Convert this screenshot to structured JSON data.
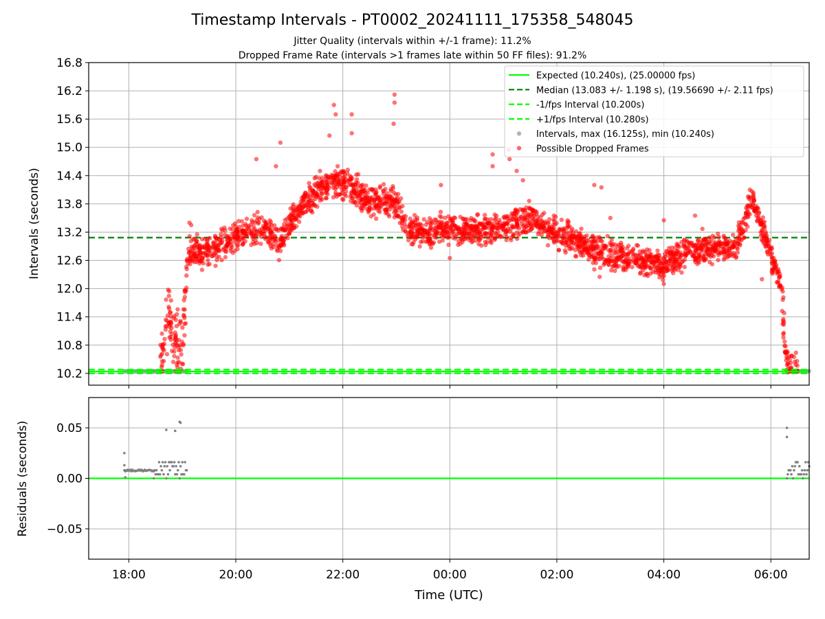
{
  "title": "Timestamp Intervals - PT0002_20241111_175358_548045",
  "subtitle_1": "Jitter Quality (intervals within +/-1 frame): 11.2%",
  "subtitle_2": "Dropped Frame Rate (intervals >1 frames late within 50 FF files): 91.2%",
  "colors": {
    "expected": "#00ff00",
    "median": "#008000",
    "fps_band": "#00ff00",
    "intervals": "#808080",
    "dropped": "#ff0000",
    "grid": "#b0b0b0"
  },
  "chart_data": [
    {
      "type": "scatter",
      "title": "Timestamp Intervals - PT0002_20241111_175358_548045",
      "xlabel": "",
      "ylabel": "Intervals (seconds)",
      "x_unit": "hours since 00:00 UTC (Nov 11 evening negative)",
      "xlim": [
        "17:15",
        "06:43"
      ],
      "ylim": [
        9.95,
        16.8
      ],
      "yticks": [
        "10.2",
        "10.8",
        "11.4",
        "12.0",
        "12.6",
        "13.2",
        "13.8",
        "14.4",
        "15.0",
        "15.6",
        "16.2",
        "16.8"
      ],
      "grid": true,
      "legend_position": "top-right",
      "legend": [
        {
          "label": "Expected (10.240s), (25.00000 fps)",
          "style": "solid-line",
          "color": "#00ff00"
        },
        {
          "label": "Median (13.083 +/- 1.198 s), (19.56690 +/- 2.11 fps)",
          "style": "dashed-line",
          "color": "#008000"
        },
        {
          "label": "-1/fps Interval (10.200s)",
          "style": "dashed-line",
          "color": "#00ff00"
        },
        {
          "label": "+1/fps Interval (10.280s)",
          "style": "dashed-line",
          "color": "#00ff00"
        },
        {
          "label": "Intervals, max (16.125s), min (10.240s)",
          "style": "marker",
          "color": "#808080"
        },
        {
          "label": "Possible Dropped Frames",
          "style": "marker",
          "color": "#ff0000"
        }
      ],
      "reference_lines": {
        "expected": 10.24,
        "median": 13.083,
        "minus_one_fps": 10.2,
        "plus_one_fps": 10.28
      },
      "series": [
        {
          "name": "Possible Dropped Frames",
          "trend": [
            {
              "time": "18:35",
              "value": 10.25
            },
            {
              "time": "18:40",
              "value": 11.0
            },
            {
              "time": "18:45",
              "value": 11.6
            },
            {
              "time": "18:50",
              "value": 10.9
            },
            {
              "time": "19:00",
              "value": 10.6
            },
            {
              "time": "19:06",
              "value": 12.7
            },
            {
              "time": "19:30",
              "value": 12.8
            },
            {
              "time": "20:00",
              "value": 13.1
            },
            {
              "time": "20:30",
              "value": 13.3
            },
            {
              "time": "20:48",
              "value": 13.0
            },
            {
              "time": "21:15",
              "value": 13.8
            },
            {
              "time": "21:45",
              "value": 14.3
            },
            {
              "time": "22:00",
              "value": 14.2
            },
            {
              "time": "22:30",
              "value": 13.9
            },
            {
              "time": "23:00",
              "value": 13.8
            },
            {
              "time": "23:10",
              "value": 13.3
            },
            {
              "time": "23:30",
              "value": 13.2
            },
            {
              "time": "00:00",
              "value": 13.3
            },
            {
              "time": "00:30",
              "value": 13.2
            },
            {
              "time": "01:00",
              "value": 13.3
            },
            {
              "time": "01:30",
              "value": 13.5
            },
            {
              "time": "02:00",
              "value": 13.2
            },
            {
              "time": "02:30",
              "value": 12.9
            },
            {
              "time": "03:00",
              "value": 12.7
            },
            {
              "time": "03:30",
              "value": 12.6
            },
            {
              "time": "04:00",
              "value": 12.55
            },
            {
              "time": "04:30",
              "value": 12.8
            },
            {
              "time": "05:00",
              "value": 12.9
            },
            {
              "time": "05:20",
              "value": 12.9
            },
            {
              "time": "05:40",
              "value": 13.9
            },
            {
              "time": "05:50",
              "value": 13.3
            },
            {
              "time": "06:00",
              "value": 12.7
            },
            {
              "time": "06:12",
              "value": 12.0
            },
            {
              "time": "06:16",
              "value": 10.8
            },
            {
              "time": "06:20",
              "value": 10.25
            },
            {
              "time": "06:30",
              "value": 10.25
            }
          ],
          "spread": 0.25,
          "outliers": [
            {
              "time": "21:50",
              "value": 15.9
            },
            {
              "time": "21:52",
              "value": 15.7
            },
            {
              "time": "22:10",
              "value": 15.7
            },
            {
              "time": "22:10",
              "value": 15.3
            },
            {
              "time": "22:58",
              "value": 16.12
            },
            {
              "time": "22:58",
              "value": 15.95
            },
            {
              "time": "22:57",
              "value": 15.5
            },
            {
              "time": "20:50",
              "value": 15.1
            },
            {
              "time": "20:45",
              "value": 14.6
            },
            {
              "time": "20:23",
              "value": 14.75
            },
            {
              "time": "21:45",
              "value": 15.25
            },
            {
              "time": "23:50",
              "value": 14.2
            },
            {
              "time": "00:48",
              "value": 14.6
            },
            {
              "time": "00:48",
              "value": 14.85
            },
            {
              "time": "01:06",
              "value": 14.95
            },
            {
              "time": "01:07",
              "value": 14.75
            },
            {
              "time": "01:15",
              "value": 14.5
            },
            {
              "time": "01:22",
              "value": 14.3
            },
            {
              "time": "02:42",
              "value": 14.2
            },
            {
              "time": "02:50",
              "value": 14.15
            },
            {
              "time": "19:08",
              "value": 13.4
            },
            {
              "time": "19:10",
              "value": 13.35
            },
            {
              "time": "04:00",
              "value": 12.1
            },
            {
              "time": "04:00",
              "value": 13.45
            },
            {
              "time": "04:35",
              "value": 13.55
            },
            {
              "time": "05:32",
              "value": 13.55
            },
            {
              "time": "05:50",
              "value": 12.2
            },
            {
              "time": "00:00",
              "value": 12.65
            },
            {
              "time": "02:48",
              "value": 12.25
            },
            {
              "time": "03:00",
              "value": 13.5
            }
          ]
        },
        {
          "name": "Intervals, max (16.125s), min (10.240s)",
          "segments": [
            {
              "start": "17:55",
              "end": "18:28",
              "value": 10.25
            },
            {
              "start": "18:28",
              "end": "19:05",
              "value": 10.25
            },
            {
              "start": "06:18",
              "end": "06:43",
              "value": 10.25
            }
          ]
        }
      ]
    },
    {
      "type": "scatter",
      "xlabel": "Time (UTC)",
      "ylabel": "Residuals (seconds)",
      "xlim": [
        "17:15",
        "06:43"
      ],
      "ylim": [
        -0.08,
        0.08
      ],
      "yticks": [
        "−0.05",
        "0.00",
        "0.05"
      ],
      "xticks": [
        "18:00",
        "20:00",
        "22:00",
        "00:00",
        "02:00",
        "04:00",
        "06:00"
      ],
      "grid": true,
      "zero_line_color": "#00ff00",
      "series": [
        {
          "name": "Residuals",
          "clusters": [
            {
              "start": "17:55",
              "end": "18:28",
              "values": [
                0.008,
                0.0075,
                0.007,
                0.0085
              ]
            },
            {
              "start": "18:28",
              "end": "19:05",
              "values": [
                0.0,
                0.004,
                0.008,
                0.012,
                0.016
              ]
            },
            {
              "start": "06:18",
              "end": "06:43",
              "values": [
                0.0,
                0.004,
                0.008,
                0.012,
                0.016
              ]
            }
          ],
          "points": [
            {
              "time": "17:55",
              "value": 0.025
            },
            {
              "time": "17:55",
              "value": 0.013
            },
            {
              "time": "17:56",
              "value": 0.001
            },
            {
              "time": "18:42",
              "value": 0.048
            },
            {
              "time": "18:52",
              "value": 0.047
            },
            {
              "time": "18:57",
              "value": 0.056
            },
            {
              "time": "18:58",
              "value": 0.055
            },
            {
              "time": "06:18",
              "value": 0.05
            },
            {
              "time": "06:18",
              "value": 0.041
            }
          ]
        }
      ]
    }
  ]
}
